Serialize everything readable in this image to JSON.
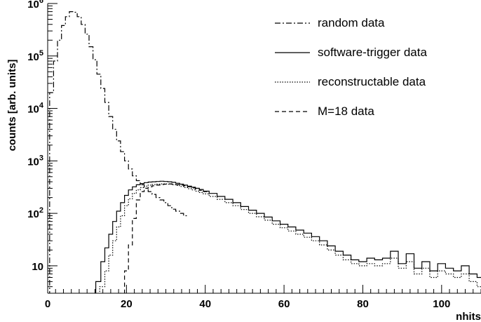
{
  "chart_data": {
    "type": "line",
    "title": "",
    "xlabel": "nhits",
    "ylabel": "counts [arb. units]",
    "xlim": [
      0,
      110
    ],
    "ylim": [
      3,
      1000000
    ],
    "yscale": "log",
    "grid": false,
    "legend_placement": "top-right",
    "x_ticks": [
      {
        "value": 0,
        "label": "0"
      },
      {
        "value": 20,
        "label": "20"
      },
      {
        "value": 40,
        "label": "40"
      },
      {
        "value": 60,
        "label": "60"
      },
      {
        "value": 80,
        "label": "80"
      },
      {
        "value": 100,
        "label": "100"
      }
    ],
    "y_ticks": [
      {
        "value": 10,
        "base": "10",
        "exp": ""
      },
      {
        "value": 100,
        "base": "10",
        "exp": "2"
      },
      {
        "value": 1000,
        "base": "10",
        "exp": "3"
      },
      {
        "value": 10000,
        "base": "10",
        "exp": "4"
      },
      {
        "value": 100000,
        "base": "10",
        "exp": "5"
      },
      {
        "value": 1000000,
        "base": "10",
        "exp": "6"
      }
    ],
    "series": [
      {
        "name": "random data",
        "dash": "8,3,2,3",
        "x": [
          1,
          2,
          3,
          4,
          5,
          6,
          7,
          8,
          9,
          10,
          11,
          12,
          13,
          14,
          15,
          16,
          17,
          18,
          19,
          20,
          21,
          22,
          23,
          24,
          25,
          26,
          27,
          28,
          29,
          30,
          31,
          32,
          33,
          34,
          35
        ],
        "y": [
          20000,
          80000,
          200000,
          380000,
          560000,
          700000,
          680000,
          560000,
          400000,
          260000,
          150000,
          85000,
          45000,
          24000,
          13000,
          7000,
          4000,
          2400,
          1500,
          1000,
          700,
          520,
          420,
          350,
          300,
          260,
          230,
          200,
          180,
          160,
          140,
          120,
          110,
          100,
          90
        ]
      },
      {
        "name": "software-trigger data",
        "dash": "",
        "x": [
          13,
          14,
          15,
          16,
          17,
          18,
          19,
          20,
          21,
          22,
          23,
          24,
          25,
          26,
          27,
          28,
          29,
          30,
          31,
          32,
          33,
          34,
          35,
          36,
          37,
          38,
          39,
          40,
          42,
          44,
          46,
          48,
          50,
          52,
          54,
          56,
          58,
          60,
          62,
          64,
          66,
          68,
          70,
          72,
          74,
          76,
          78,
          80,
          82,
          84,
          86,
          88,
          90,
          92,
          94,
          96,
          98,
          100,
          102,
          104,
          106,
          108,
          110
        ],
        "y": [
          5,
          12,
          22,
          40,
          70,
          110,
          160,
          220,
          280,
          320,
          350,
          370,
          385,
          395,
          400,
          405,
          410,
          405,
          400,
          390,
          375,
          360,
          345,
          330,
          315,
          300,
          285,
          265,
          240,
          210,
          185,
          160,
          135,
          115,
          100,
          85,
          72,
          62,
          55,
          48,
          42,
          36,
          30,
          24,
          19,
          16,
          13,
          12,
          14,
          13,
          14,
          19,
          11,
          17,
          9,
          12,
          8,
          11,
          9,
          8,
          10,
          7,
          6
        ]
      },
      {
        "name": "reconstructable data",
        "dash": "1.5,2",
        "x": [
          14,
          15,
          16,
          17,
          18,
          19,
          20,
          21,
          22,
          23,
          24,
          25,
          26,
          27,
          28,
          29,
          30,
          31,
          32,
          33,
          34,
          35,
          36,
          37,
          38,
          39,
          40,
          42,
          44,
          46,
          48,
          50,
          52,
          54,
          56,
          58,
          60,
          62,
          64,
          66,
          68,
          70,
          72,
          74,
          76,
          78,
          80,
          82,
          84,
          86,
          88,
          90,
          92,
          94,
          96,
          98,
          100,
          102,
          104,
          106,
          108,
          110
        ],
        "y": [
          4,
          8,
          16,
          30,
          55,
          90,
          140,
          190,
          240,
          280,
          310,
          330,
          345,
          355,
          360,
          365,
          365,
          360,
          350,
          340,
          325,
          310,
          295,
          280,
          265,
          250,
          235,
          210,
          185,
          160,
          140,
          118,
          100,
          86,
          74,
          62,
          53,
          46,
          40,
          35,
          30,
          25,
          20,
          16,
          13,
          11,
          10,
          11,
          10,
          11,
          14,
          9,
          12,
          7,
          9,
          6,
          8,
          7,
          6,
          7,
          5,
          4
        ]
      },
      {
        "name": "M=18 data",
        "dash": "6,4",
        "x": [
          19,
          20,
          21,
          22,
          23,
          24,
          25,
          26,
          27,
          28,
          29,
          30,
          31,
          32,
          33,
          34,
          35,
          36,
          37,
          38,
          39,
          40
        ],
        "y": [
          3,
          8,
          25,
          80,
          180,
          260,
          300,
          320,
          335,
          345,
          355,
          360,
          365,
          360,
          355,
          345,
          335,
          320,
          305,
          290,
          275,
          260
        ]
      }
    ]
  }
}
